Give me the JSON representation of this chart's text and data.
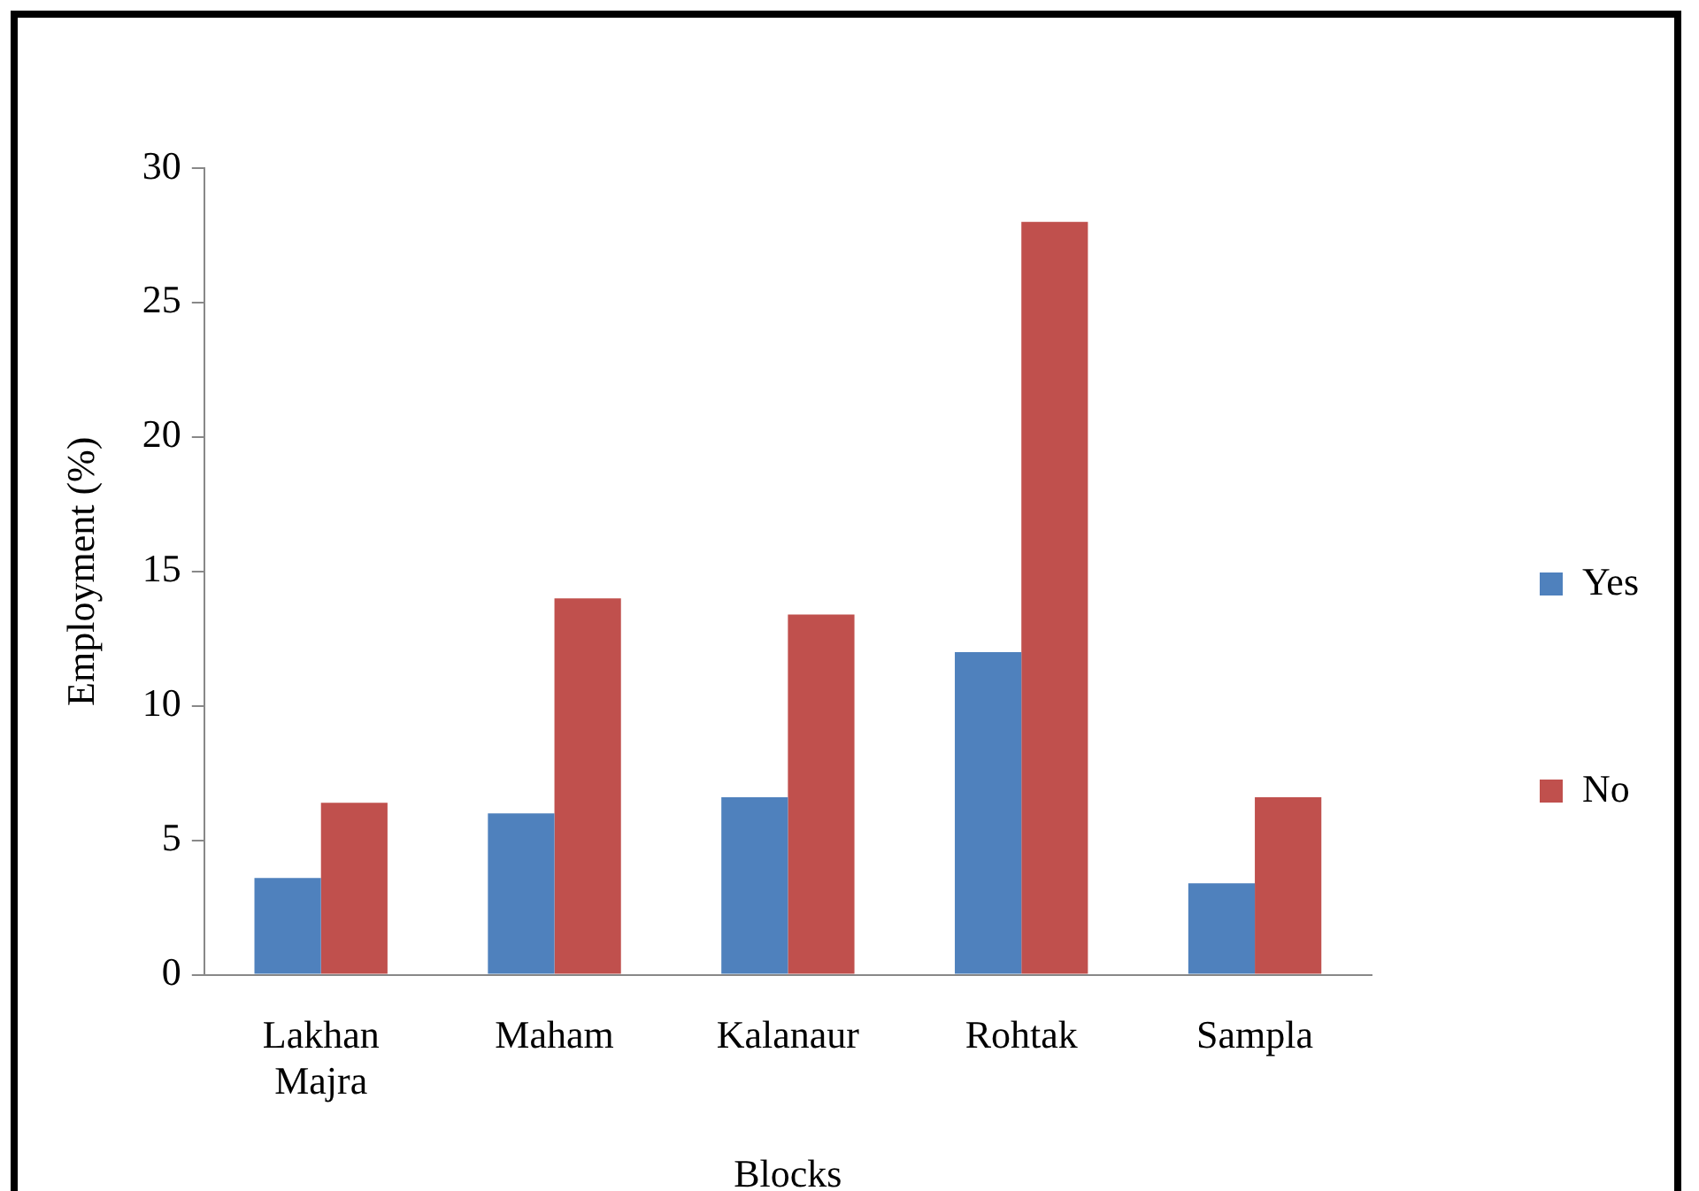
{
  "chart_data": {
    "type": "bar",
    "xlabel": "Blocks",
    "ylabel": "Employment (%)",
    "categories": [
      "Lakhan Majra",
      "Maham",
      "Kalanaur",
      "Rohtak",
      "Sampla"
    ],
    "series": [
      {
        "name": "Yes",
        "color": "#4f81bd",
        "values": [
          3.6,
          6.0,
          6.6,
          12,
          3.4
        ]
      },
      {
        "name": "No",
        "color": "#c0504d",
        "values": [
          6.4,
          14,
          13.4,
          28,
          6.6
        ]
      }
    ],
    "ylim": [
      0,
      30
    ],
    "yticks": [
      0,
      5,
      10,
      15,
      20,
      25,
      30
    ],
    "grid": false,
    "legend": "right"
  }
}
